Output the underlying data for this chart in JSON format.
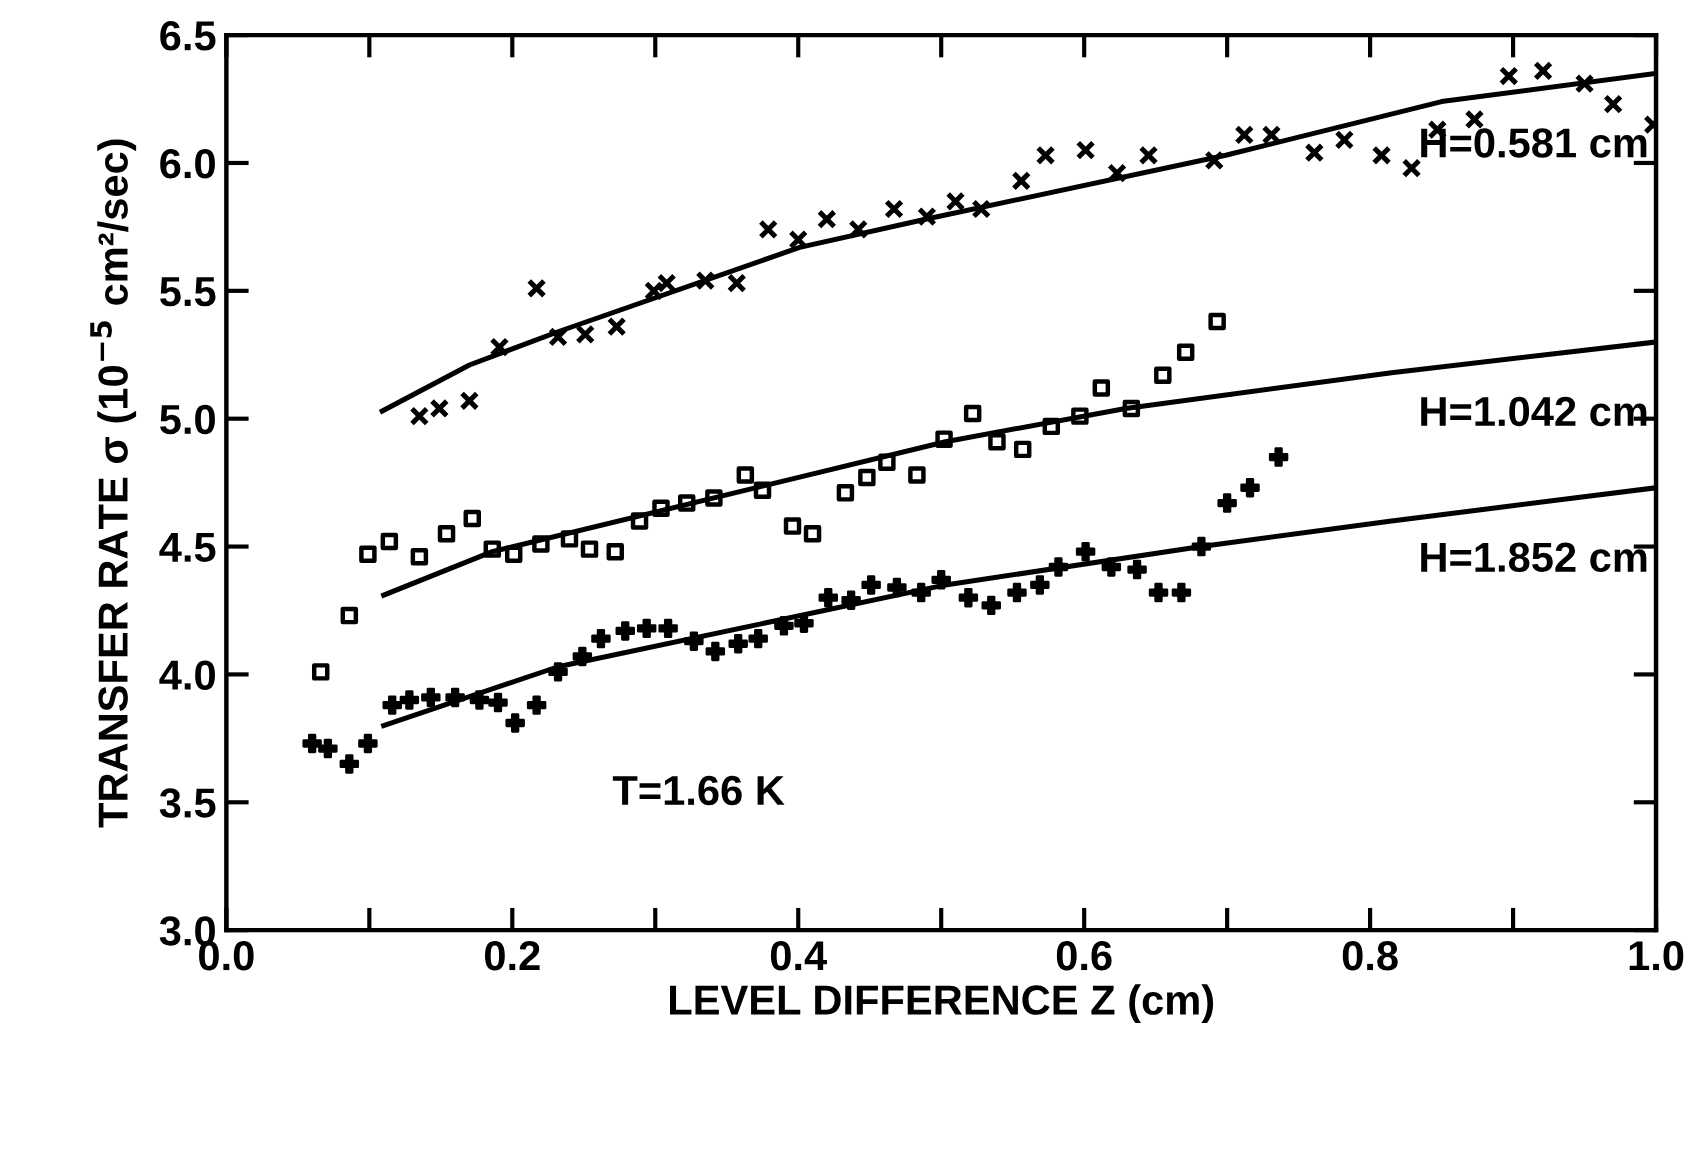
{
  "chart_data": {
    "type": "scatter",
    "xlabel": "LEVEL DIFFERENCE Z (cm)",
    "ylabel": "TRANSFER RATE σ (10$^{−5}$ cm²/sec)",
    "xlim": [
      0.0,
      1.0
    ],
    "ylim": [
      3.0,
      6.5
    ],
    "xticks": [
      {
        "value": 0,
        "label": "0.0"
      },
      {
        "value": 0.1,
        "label": null
      },
      0.2,
      {
        "value": 0.3,
        "label": null
      },
      0.4,
      {
        "value": 0.5,
        "label": null
      },
      0.6,
      {
        "value": 0.7,
        "label": null
      },
      0.8,
      {
        "value": 0.9,
        "label": null
      },
      {
        "value": 1,
        "label": "1.0"
      }
    ],
    "yticks": [
      {
        "value": 3,
        "label": "3.0"
      },
      3.5,
      {
        "value": 4,
        "label": "4.0"
      },
      4.5,
      {
        "value": 5,
        "label": "5.0"
      },
      5.5,
      {
        "value": 6,
        "label": "6.0"
      },
      6.5
    ],
    "grid": false,
    "legend": "right",
    "annotations": [
      "T=1.66 K"
    ],
    "series": [
      {
        "marker": "cross",
        "color": "#000000",
        "x": [
          0.135,
          0.149,
          0.17,
          0.191,
          0.217,
          0.232,
          0.251,
          0.273,
          0.299,
          0.308,
          0.335,
          0.357,
          0.379,
          0.4,
          0.42,
          0.442,
          0.467,
          0.49,
          0.51,
          0.528,
          0.556,
          0.573,
          0.601,
          0.623,
          0.645,
          0.691,
          0.712,
          0.731,
          0.761,
          0.782,
          0.808,
          0.829,
          0.847,
          0.873,
          0.897,
          0.921,
          0.95,
          0.97,
          0.998
        ],
        "values": [
          5.01,
          5.04,
          5.07,
          5.28,
          5.51,
          5.32,
          5.33,
          5.36,
          5.5,
          5.53,
          5.54,
          5.53,
          5.74,
          5.7,
          5.78,
          5.74,
          5.82,
          5.79,
          5.85,
          5.82,
          5.93,
          6.03,
          6.05,
          5.96,
          6.03,
          6.01,
          6.11,
          6.11,
          6.04,
          6.09,
          6.03,
          5.98,
          6.13,
          6.17,
          6.34,
          6.36,
          6.31,
          6.23,
          6.15
        ]
      },
      {
        "type": "line",
        "name": "H=0.581 cm",
        "color": "#000000",
        "line_style": "solid",
        "x": [
          0.109,
          0.17,
          0.232,
          0.401,
          0.489,
          0.699,
          0.85,
          1.0
        ],
        "values": [
          5.03,
          5.21,
          5.34,
          5.67,
          5.78,
          6.03,
          6.24,
          6.35
        ]
      },
      {
        "marker": "square",
        "color": "#000000",
        "x": [
          0.066,
          0.086,
          0.099,
          0.114,
          0.135,
          0.154,
          0.172,
          0.186,
          0.201,
          0.22,
          0.24,
          0.254,
          0.272,
          0.289,
          0.304,
          0.322,
          0.341,
          0.363,
          0.375,
          0.396,
          0.41,
          0.433,
          0.448,
          0.462,
          0.483,
          0.502,
          0.522,
          0.539,
          0.557,
          0.577,
          0.597,
          0.612,
          0.633,
          0.655,
          0.671,
          0.693
        ],
        "values": [
          4.01,
          4.23,
          4.47,
          4.52,
          4.46,
          4.55,
          4.61,
          4.49,
          4.47,
          4.51,
          4.53,
          4.49,
          4.48,
          4.6,
          4.65,
          4.67,
          4.69,
          4.78,
          4.72,
          4.58,
          4.55,
          4.71,
          4.77,
          4.83,
          4.78,
          4.92,
          5.02,
          4.91,
          4.88,
          4.97,
          5.01,
          5.12,
          5.04,
          5.17,
          5.26,
          5.38
        ]
      },
      {
        "type": "line",
        "name": "H=1.042 cm",
        "color": "#000000",
        "line_style": "solid",
        "x": [
          0.11,
          0.186,
          0.503,
          0.629,
          0.815,
          1.0
        ],
        "values": [
          4.31,
          4.48,
          4.91,
          5.04,
          5.18,
          5.3
        ]
      },
      {
        "marker": "plus",
        "color": "#000000",
        "x": [
          0.06,
          0.071,
          0.086,
          0.099,
          0.116,
          0.128,
          0.143,
          0.16,
          0.177,
          0.19,
          0.202,
          0.217,
          0.232,
          0.249,
          0.262,
          0.279,
          0.294,
          0.309,
          0.327,
          0.342,
          0.358,
          0.372,
          0.39,
          0.404,
          0.421,
          0.437,
          0.451,
          0.469,
          0.486,
          0.5,
          0.519,
          0.535,
          0.553,
          0.569,
          0.582,
          0.601,
          0.619,
          0.637,
          0.652,
          0.668,
          0.682,
          0.7,
          0.716,
          0.736
        ],
        "values": [
          3.73,
          3.71,
          3.65,
          3.73,
          3.88,
          3.9,
          3.91,
          3.91,
          3.9,
          3.89,
          3.81,
          3.88,
          4.01,
          4.07,
          4.14,
          4.17,
          4.18,
          4.18,
          4.13,
          4.09,
          4.12,
          4.14,
          4.19,
          4.2,
          4.3,
          4.29,
          4.35,
          4.34,
          4.32,
          4.37,
          4.3,
          4.27,
          4.32,
          4.35,
          4.42,
          4.48,
          4.42,
          4.41,
          4.32,
          4.32,
          4.5,
          4.67,
          4.73,
          4.85
        ]
      },
      {
        "type": "line",
        "name": "H=1.852 cm",
        "color": "#000000",
        "line_style": "solid",
        "x": [
          0.11,
          0.232,
          0.503,
          0.682,
          0.815,
          1.0
        ],
        "values": [
          3.8,
          4.03,
          4.35,
          4.5,
          4.6,
          4.73
        ]
      }
    ]
  }
}
